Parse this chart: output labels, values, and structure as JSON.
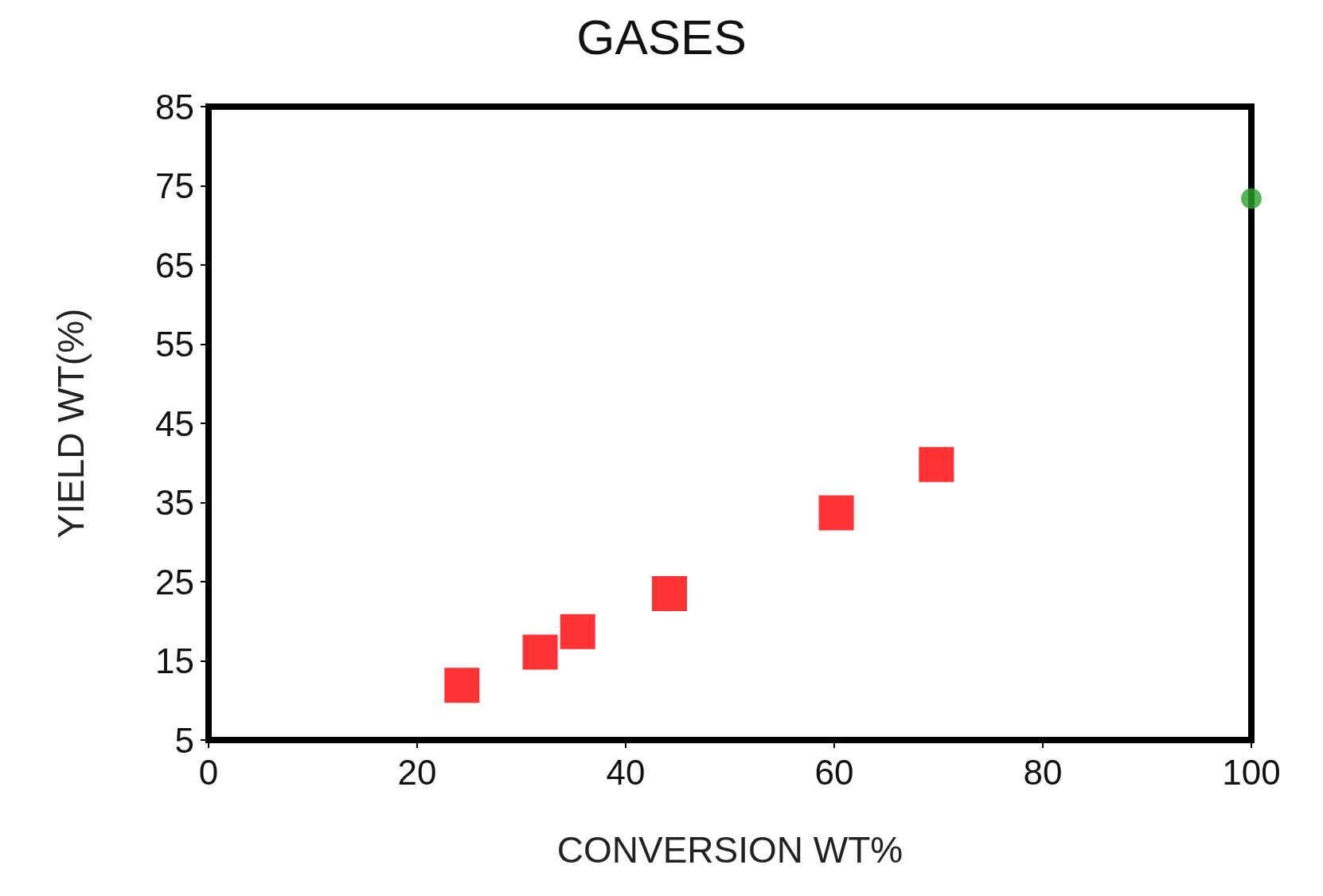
{
  "chart_data": {
    "type": "scatter",
    "title": "GASES",
    "xlabel": "CONVERSION WT%",
    "ylabel": "YIELD WT(%)",
    "xlim": [
      0,
      100
    ],
    "xticks": [
      0,
      20,
      40,
      60,
      80,
      100
    ],
    "ylim": [
      5,
      85
    ],
    "yticks": [
      5,
      15,
      25,
      35,
      45,
      55,
      65,
      75,
      85
    ],
    "grid": false,
    "series": [
      {
        "color": "#ff0000",
        "marker": "square",
        "x": [
          24.3,
          31.8,
          35.4,
          44.2,
          60.2,
          69.8
        ],
        "values": [
          11.9,
          16.1,
          18.7,
          23.5,
          33.7,
          39.8
        ]
      },
      {
        "color": "#2ca02c",
        "marker": "circle",
        "x": [
          100
        ],
        "values": [
          73.4
        ]
      }
    ]
  }
}
